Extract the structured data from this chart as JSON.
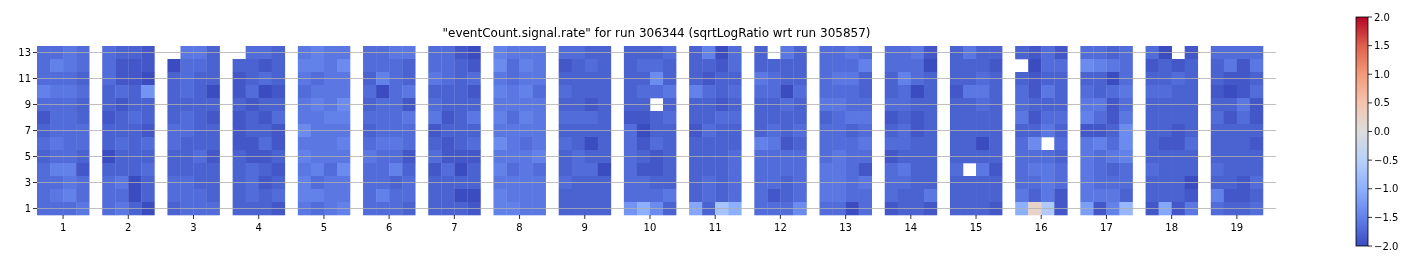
{
  "chart_data": {
    "type": "heatmap",
    "title": "\"eventCount.signal.rate\" for run 306344 (sqrtLogRatio wrt run 305857)",
    "grid": "y",
    "clim": [
      -2,
      2
    ],
    "cticks": [
      {
        "value": 2,
        "label": "2.0"
      },
      {
        "value": 1.5,
        "label": "1.5"
      },
      {
        "value": 1,
        "label": "1.0"
      },
      {
        "value": 0.5,
        "label": "0.5"
      },
      {
        "value": 0,
        "label": "0.0"
      },
      {
        "value": -0.5,
        "label": "−0.5"
      },
      {
        "value": -1,
        "label": "−1.0"
      },
      {
        "value": -1.5,
        "label": "−1.5"
      },
      {
        "value": -2,
        "label": "−2.0"
      }
    ],
    "xlim": [
      0.6,
      19.6
    ],
    "xticks": [
      1,
      2,
      3,
      4,
      5,
      6,
      7,
      8,
      9,
      10,
      11,
      12,
      13,
      14,
      15,
      16,
      17,
      18,
      19
    ],
    "x": [
      0.7,
      0.9,
      1.1,
      1.3,
      1.7,
      1.9,
      2.1,
      2.3,
      2.7,
      2.9,
      3.1,
      3.3,
      3.7,
      3.9,
      4.1,
      4.3,
      4.7,
      4.9,
      5.1,
      5.3,
      5.7,
      5.9,
      6.1,
      6.3,
      6.7,
      6.9,
      7.1,
      7.3,
      7.7,
      7.9,
      8.1,
      8.3,
      8.7,
      8.9,
      9.1,
      9.3,
      9.7,
      9.9,
      10.1,
      10.3,
      10.7,
      10.9,
      11.1,
      11.3,
      11.7,
      11.9,
      12.1,
      12.3,
      12.7,
      12.9,
      13.1,
      13.3,
      13.7,
      13.9,
      14.1,
      14.3,
      14.7,
      14.9,
      15.1,
      15.3,
      15.7,
      15.9,
      16.1,
      16.3,
      16.7,
      16.9,
      17.1,
      17.3,
      17.7,
      17.9,
      18.1,
      18.3,
      18.7,
      18.9,
      19.1,
      19.3
    ],
    "y_categories": [
      "13",
      null,
      "11",
      null,
      "9",
      null,
      "7",
      null,
      "5",
      null,
      "3",
      null,
      "1"
    ],
    "cells": [
      [
        -1.7,
        -1.7,
        -1.6,
        -1.7,
        -1.7,
        -1.8,
        -1.8,
        -1.9,
        null,
        -1.6,
        -1.6,
        -1.8,
        null,
        -1.7,
        -1.7,
        -1.8,
        -1.6,
        -1.5,
        -1.6,
        -1.6,
        -1.7,
        -1.7,
        -1.6,
        -1.6,
        -1.7,
        -1.7,
        -1.9,
        -2.0,
        -1.5,
        -1.6,
        -1.6,
        -1.6,
        -1.7,
        -1.7,
        -1.8,
        -1.8,
        -1.8,
        -1.8,
        -1.8,
        -1.7,
        -1.8,
        -1.5,
        -2.0,
        -1.7,
        -1.8,
        null,
        -1.6,
        -1.8,
        -1.7,
        -1.7,
        -1.6,
        -1.7,
        -1.7,
        -1.7,
        -1.6,
        -1.9,
        -1.8,
        -1.6,
        -1.8,
        -1.8,
        -1.8,
        -1.9,
        -1.7,
        -1.9,
        -1.7,
        -1.7,
        -1.8,
        -1.7,
        -1.7,
        -2.0,
        null,
        -1.9,
        -1.7,
        -1.7,
        -1.7,
        -1.7
      ],
      [
        -1.7,
        -1.5,
        -1.6,
        -1.7,
        -1.7,
        -1.9,
        -1.9,
        -1.9,
        -2.0,
        -1.7,
        -1.7,
        -1.8,
        -1.8,
        -1.8,
        -1.9,
        -1.8,
        -1.5,
        -1.5,
        -1.6,
        -1.4,
        -1.7,
        -1.7,
        -1.7,
        -1.8,
        -1.7,
        -1.7,
        -1.8,
        -1.9,
        -1.4,
        -1.7,
        -1.5,
        -1.6,
        -1.9,
        -1.8,
        -1.7,
        -1.8,
        -1.8,
        -1.7,
        -1.7,
        -1.8,
        -1.8,
        -1.8,
        -1.9,
        -1.7,
        -1.8,
        -1.8,
        -1.8,
        -1.8,
        -1.7,
        -1.7,
        -1.7,
        -1.5,
        -1.7,
        -1.7,
        -1.7,
        -2.0,
        -1.8,
        -1.8,
        -1.8,
        -1.9,
        null,
        -2.0,
        -1.7,
        -1.7,
        -1.4,
        -1.5,
        -1.6,
        -1.7,
        -1.9,
        -1.8,
        -1.9,
        -1.8,
        -1.8,
        -1.6,
        -1.9,
        -1.6
      ],
      [
        -1.7,
        -1.7,
        -1.7,
        -1.8,
        -1.7,
        -1.9,
        -1.9,
        -2.0,
        -1.8,
        -1.7,
        -1.8,
        -1.8,
        -1.9,
        -1.8,
        -1.7,
        -1.8,
        -1.6,
        -1.7,
        -1.6,
        -1.6,
        -1.8,
        -1.5,
        -1.7,
        -1.8,
        -1.6,
        -1.7,
        -1.8,
        -1.7,
        -1.6,
        -1.7,
        -1.6,
        -1.6,
        -1.8,
        -1.8,
        -1.8,
        -1.8,
        -1.8,
        -1.8,
        -1.4,
        -1.8,
        -1.8,
        -1.9,
        -1.8,
        -1.8,
        -1.6,
        -1.7,
        -1.8,
        -1.8,
        -1.7,
        -1.6,
        -1.6,
        -1.8,
        -1.8,
        -1.5,
        -1.7,
        -1.8,
        -1.8,
        -1.8,
        -1.7,
        -1.8,
        -1.8,
        -1.9,
        -1.8,
        -1.8,
        -1.8,
        -1.8,
        -2.0,
        -1.7,
        -1.8,
        -1.8,
        -1.7,
        -1.8,
        -1.8,
        -1.9,
        -1.9,
        -1.8
      ],
      [
        -1.5,
        -1.6,
        -1.6,
        -1.7,
        -1.8,
        -1.7,
        -1.8,
        -1.3,
        -1.8,
        -1.7,
        -1.8,
        -2.0,
        -1.9,
        -1.7,
        -2.0,
        -1.9,
        -1.7,
        -1.6,
        -1.6,
        -1.6,
        -1.7,
        -2.0,
        -1.7,
        -1.6,
        -1.8,
        -1.8,
        -1.8,
        -1.9,
        -1.5,
        -1.6,
        -1.5,
        -1.7,
        -1.7,
        -1.8,
        -1.8,
        -1.8,
        -1.8,
        -1.7,
        -1.7,
        -1.6,
        -1.5,
        -1.7,
        -1.8,
        -1.7,
        -1.7,
        -1.7,
        -2.0,
        -1.7,
        -1.7,
        -1.7,
        -1.7,
        -1.8,
        -1.8,
        -1.7,
        -2.0,
        -1.8,
        -1.9,
        -1.6,
        -1.6,
        -1.8,
        -1.7,
        -1.9,
        -1.6,
        -1.8,
        -1.7,
        -1.8,
        -1.7,
        -1.6,
        -1.7,
        -1.7,
        -1.8,
        -1.8,
        -1.9,
        -2.0,
        -1.9,
        -1.7
      ],
      [
        -1.7,
        -1.7,
        -1.7,
        -1.8,
        -1.8,
        -1.9,
        -1.8,
        -1.8,
        -1.8,
        -1.8,
        -1.8,
        -1.8,
        -1.8,
        -1.9,
        -1.8,
        -1.8,
        -1.6,
        -1.5,
        -1.6,
        -1.4,
        -1.8,
        -1.7,
        -1.7,
        -1.9,
        -1.7,
        -1.8,
        -1.8,
        -1.8,
        -1.6,
        -1.6,
        -1.6,
        -1.6,
        -1.8,
        -1.8,
        -1.9,
        -1.8,
        -1.8,
        -1.8,
        null,
        -1.8,
        -1.8,
        -1.8,
        -1.9,
        -1.8,
        -1.8,
        -1.8,
        -1.7,
        -1.8,
        -1.6,
        -1.6,
        -1.7,
        -1.7,
        -1.7,
        -1.7,
        -1.8,
        -1.8,
        -1.8,
        -1.8,
        -1.7,
        -1.8,
        -1.7,
        -1.8,
        -1.8,
        -1.8,
        -1.6,
        -1.6,
        -1.9,
        -1.7,
        -1.8,
        -1.8,
        -1.8,
        -1.8,
        -1.8,
        -1.8,
        -1.6,
        -1.9
      ],
      [
        -1.9,
        -1.7,
        -1.7,
        -1.8,
        -1.9,
        -1.8,
        -1.7,
        -1.8,
        -1.8,
        -1.7,
        -1.8,
        -1.9,
        -1.9,
        -1.8,
        -1.9,
        -1.7,
        -1.6,
        -1.6,
        -1.5,
        -1.5,
        -1.7,
        -1.7,
        -1.7,
        -1.6,
        -1.6,
        -1.9,
        -1.8,
        -1.6,
        -1.5,
        -1.7,
        -1.5,
        -1.6,
        -1.7,
        -1.7,
        -1.7,
        -1.8,
        -1.9,
        -1.9,
        -1.8,
        -1.7,
        -1.8,
        -1.8,
        -1.7,
        -1.7,
        -1.8,
        -1.8,
        -1.8,
        -1.8,
        -1.8,
        -1.7,
        -1.6,
        -1.6,
        -1.9,
        -1.8,
        -1.9,
        -1.8,
        -1.8,
        -1.8,
        -1.8,
        -1.8,
        -1.6,
        -1.9,
        -1.7,
        -1.7,
        -1.5,
        -1.7,
        -1.9,
        -1.6,
        -1.8,
        -1.8,
        -1.8,
        -1.8,
        -1.7,
        -1.9,
        -1.7,
        -1.9
      ],
      [
        -1.8,
        -1.7,
        -1.7,
        -1.7,
        -1.8,
        -1.8,
        -1.8,
        -1.9,
        -1.7,
        -1.7,
        -1.8,
        -1.8,
        -1.9,
        -1.8,
        -1.8,
        -1.9,
        -1.4,
        -1.6,
        -1.6,
        -1.6,
        -1.8,
        -1.7,
        -1.7,
        -1.7,
        -1.9,
        -1.8,
        -1.8,
        -1.8,
        -1.6,
        -1.6,
        -1.6,
        -1.6,
        -1.8,
        -1.8,
        -1.8,
        -1.8,
        -1.7,
        -2.0,
        -1.8,
        -1.8,
        -1.9,
        -1.7,
        -1.8,
        -1.8,
        -1.8,
        -1.7,
        -1.8,
        -1.7,
        -1.7,
        -1.7,
        -1.8,
        -1.7,
        -1.8,
        -1.7,
        -1.9,
        -1.8,
        -1.8,
        -1.8,
        -1.8,
        -1.8,
        -1.8,
        -1.8,
        -1.6,
        -1.8,
        -1.9,
        -1.9,
        -1.8,
        -1.4,
        -1.8,
        -1.8,
        -1.9,
        -1.8,
        -1.8,
        -1.8,
        -1.8,
        -1.8
      ],
      [
        -1.7,
        -1.6,
        -1.7,
        -1.7,
        -1.8,
        -1.7,
        -1.8,
        -1.7,
        -1.7,
        -1.8,
        -1.8,
        -1.8,
        -1.9,
        -1.9,
        -1.7,
        -1.9,
        -1.6,
        -1.6,
        -1.6,
        -1.5,
        -1.7,
        -1.6,
        -1.6,
        -1.7,
        -1.8,
        -1.9,
        -1.8,
        -1.7,
        -1.4,
        -1.6,
        -1.7,
        -1.6,
        -1.7,
        -1.8,
        -2.0,
        -1.8,
        -1.7,
        -1.9,
        -1.7,
        -1.8,
        -1.8,
        -1.8,
        -1.8,
        -1.8,
        -1.5,
        -1.6,
        -1.9,
        -1.8,
        -1.7,
        -1.7,
        -1.7,
        -1.6,
        -1.7,
        -1.7,
        -1.8,
        -1.8,
        -1.8,
        -1.8,
        -2.0,
        -1.8,
        -1.7,
        -1.4,
        null,
        -1.7,
        -1.6,
        -1.5,
        -1.7,
        -1.4,
        -1.8,
        -1.9,
        -1.9,
        -1.7,
        -1.8,
        -1.8,
        -1.8,
        -1.9
      ],
      [
        -1.8,
        -1.7,
        -1.7,
        -1.8,
        -2.0,
        -1.8,
        -1.8,
        -1.8,
        -1.8,
        -1.8,
        -1.7,
        -1.9,
        -1.8,
        -1.9,
        -1.9,
        -1.8,
        -1.5,
        -1.6,
        -1.6,
        -1.6,
        -1.6,
        -1.7,
        -1.7,
        -1.9,
        -1.7,
        -1.9,
        -1.9,
        -1.9,
        -1.6,
        -1.6,
        -1.6,
        -1.5,
        -1.8,
        -1.7,
        -1.8,
        -1.8,
        -1.7,
        -1.8,
        -1.9,
        -1.8,
        -1.8,
        -1.8,
        -1.8,
        -1.7,
        -1.7,
        -1.7,
        -1.7,
        -1.7,
        -1.7,
        -1.6,
        -1.7,
        -1.7,
        -1.9,
        -1.8,
        -1.8,
        -1.8,
        -1.8,
        -1.8,
        -1.8,
        -1.8,
        -1.7,
        -1.7,
        -1.7,
        -1.8,
        -1.6,
        -1.7,
        -1.6,
        -1.5,
        -1.8,
        -1.8,
        -1.8,
        -1.8,
        -1.8,
        -1.8,
        -1.8,
        -1.8
      ],
      [
        -1.7,
        -1.5,
        -1.5,
        -1.9,
        -1.8,
        -1.8,
        -1.8,
        -1.7,
        -1.8,
        -1.8,
        -1.8,
        -1.8,
        -1.8,
        -1.7,
        -1.8,
        -1.9,
        -1.6,
        -1.5,
        -1.7,
        -1.4,
        -1.7,
        -1.7,
        -1.5,
        -1.8,
        -1.9,
        -1.7,
        -2.0,
        -1.8,
        -1.5,
        -1.7,
        -1.6,
        -1.7,
        -1.8,
        -1.7,
        -1.7,
        -2.0,
        -1.7,
        -1.9,
        -1.9,
        -1.8,
        -1.8,
        -1.8,
        -1.8,
        -1.7,
        -1.7,
        -1.7,
        -1.7,
        -1.7,
        -1.6,
        -1.6,
        -1.7,
        -1.9,
        -1.7,
        -1.6,
        -1.8,
        -1.8,
        -1.7,
        null,
        -1.6,
        -1.9,
        -1.7,
        -1.6,
        -1.6,
        -1.7,
        -1.6,
        -1.7,
        -1.8,
        -1.7,
        -1.7,
        -1.8,
        -1.8,
        -1.8,
        -1.7,
        -1.8,
        -1.8,
        -1.8
      ],
      [
        -1.7,
        -1.7,
        -1.6,
        -1.7,
        -1.7,
        -1.6,
        -2.0,
        -1.8,
        -1.7,
        -1.7,
        -1.8,
        -1.8,
        -1.8,
        -1.7,
        -1.9,
        -1.8,
        -1.5,
        -1.7,
        -1.6,
        -1.6,
        -1.7,
        -1.7,
        -1.8,
        -1.7,
        -1.8,
        -1.8,
        -1.8,
        -1.8,
        -1.6,
        -1.6,
        -1.6,
        -1.6,
        -1.7,
        -1.8,
        -1.8,
        -1.8,
        -1.7,
        -1.7,
        -1.8,
        -1.8,
        -1.8,
        -1.7,
        -1.8,
        -1.7,
        -1.7,
        -1.7,
        -1.8,
        -1.7,
        -1.6,
        -1.6,
        -1.7,
        -1.6,
        -1.7,
        -1.7,
        -1.8,
        -1.8,
        -1.8,
        -1.8,
        -1.8,
        -1.8,
        -1.7,
        -1.7,
        -1.6,
        -1.7,
        -1.6,
        -1.7,
        -1.7,
        -1.7,
        -1.8,
        -1.8,
        -1.8,
        -2.0,
        -1.8,
        -1.8,
        -1.9,
        -1.7
      ],
      [
        -1.7,
        -1.6,
        -1.5,
        -1.7,
        -1.7,
        -1.7,
        -2.0,
        -1.8,
        -1.7,
        -1.7,
        -1.7,
        -1.8,
        -1.8,
        -1.7,
        -1.8,
        -1.7,
        -1.5,
        -1.5,
        -1.6,
        -1.6,
        -1.7,
        -1.5,
        -1.7,
        -1.7,
        -1.8,
        -1.8,
        -2.0,
        -2.0,
        -1.5,
        -1.6,
        -1.6,
        -1.6,
        -1.8,
        -1.8,
        -1.8,
        -1.8,
        -1.7,
        -1.7,
        -1.7,
        -1.6,
        -1.8,
        -1.7,
        -1.8,
        -1.7,
        -1.7,
        -1.9,
        -1.8,
        -1.7,
        -1.6,
        -1.6,
        -1.7,
        -1.7,
        -1.7,
        -1.8,
        -1.8,
        -1.6,
        -1.8,
        -1.8,
        -1.8,
        -1.8,
        -1.6,
        -1.8,
        -1.6,
        -1.9,
        -1.6,
        -1.6,
        -1.6,
        -1.8,
        -1.8,
        -1.8,
        -1.8,
        -1.9,
        -1.5,
        -1.9,
        -1.9,
        -1.8
      ],
      [
        -1.7,
        -1.7,
        -1.7,
        -1.6,
        -1.7,
        -1.6,
        -1.8,
        -2.0,
        -1.8,
        -1.7,
        -1.7,
        -1.7,
        -1.8,
        -1.8,
        -1.8,
        -1.9,
        -1.6,
        -1.7,
        -1.6,
        -1.5,
        -1.7,
        -1.7,
        -1.7,
        -1.8,
        -1.8,
        -1.8,
        -1.8,
        -1.9,
        -1.5,
        -1.5,
        -1.6,
        -1.6,
        -1.8,
        -1.8,
        -1.8,
        -1.8,
        -1.3,
        -1.0,
        -1.4,
        -1.8,
        -1.1,
        -1.8,
        -0.7,
        -1.0,
        -1.7,
        -1.7,
        -1.7,
        -1.4,
        -1.7,
        -1.7,
        -2.0,
        -1.7,
        -1.9,
        -1.8,
        -1.8,
        -1.9,
        -1.8,
        -1.8,
        -1.8,
        -1.9,
        -1.0,
        0.2,
        -0.6,
        -1.9,
        -1.2,
        -1.9,
        -1.5,
        -0.9,
        -1.9,
        -1.1,
        -1.9,
        -1.6,
        -1.7,
        -1.8,
        -1.8,
        -1.7
      ]
    ]
  }
}
